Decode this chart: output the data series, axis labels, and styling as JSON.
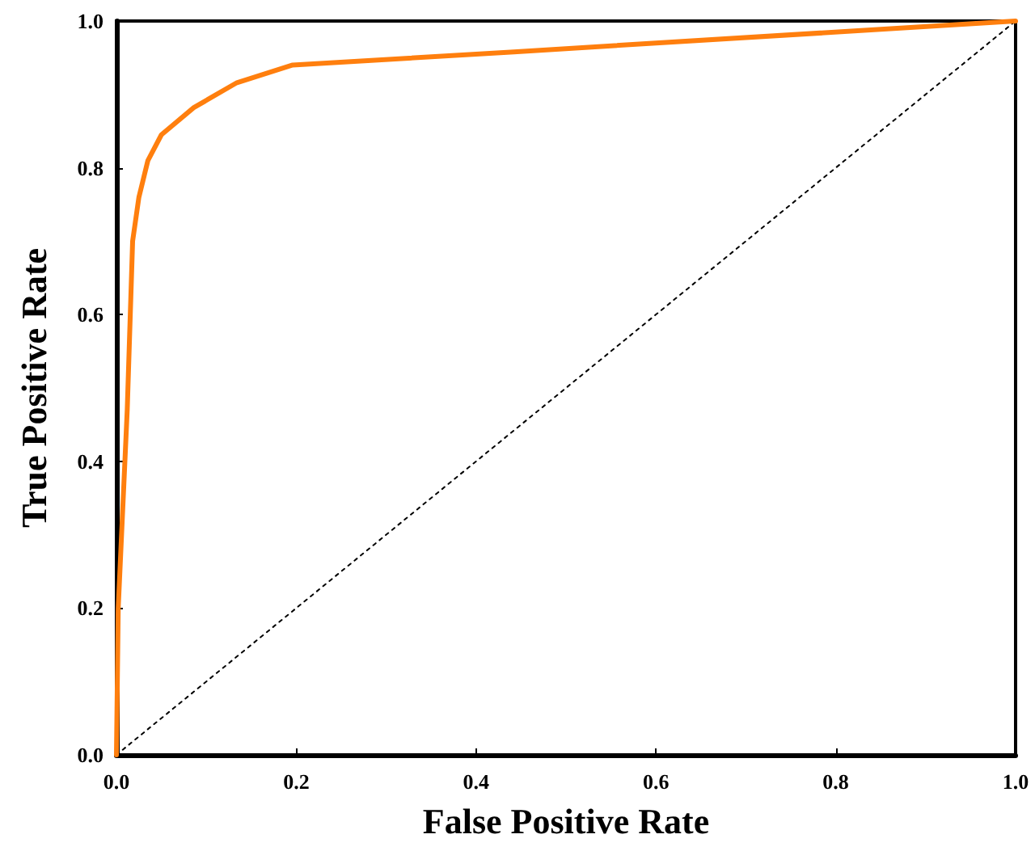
{
  "chart_data": {
    "type": "line",
    "xlabel": "False Positive Rate",
    "ylabel": "True Positive Rate",
    "xlim": [
      0,
      1
    ],
    "ylim": [
      0,
      1
    ],
    "xticks": [
      {
        "value": 0,
        "label": "0.0"
      },
      0.2,
      0.4,
      0.6,
      0.8,
      {
        "value": 1,
        "label": "1.0"
      }
    ],
    "yticks": [
      {
        "value": 0,
        "label": "0.0"
      },
      0.2,
      0.4,
      0.6,
      0.8,
      {
        "value": 1,
        "label": "1.0"
      }
    ],
    "grid": false,
    "marker": "none",
    "series": [
      {
        "color": "#ff7f0e",
        "line_style": "solid",
        "x": [
          0,
          0.002,
          0.012,
          0.018,
          0.025,
          0.035,
          0.05,
          0.086,
          0.134,
          0.196,
          0.442,
          1
        ],
        "values": [
          0,
          0.2,
          0.47,
          0.7,
          0.76,
          0.81,
          0.845,
          0.882,
          0.916,
          0.94,
          0.958,
          1
        ]
      },
      {
        "color": "#000000",
        "line_style": "dotted",
        "x": [
          0,
          1
        ],
        "values": [
          0,
          1
        ]
      }
    ]
  }
}
